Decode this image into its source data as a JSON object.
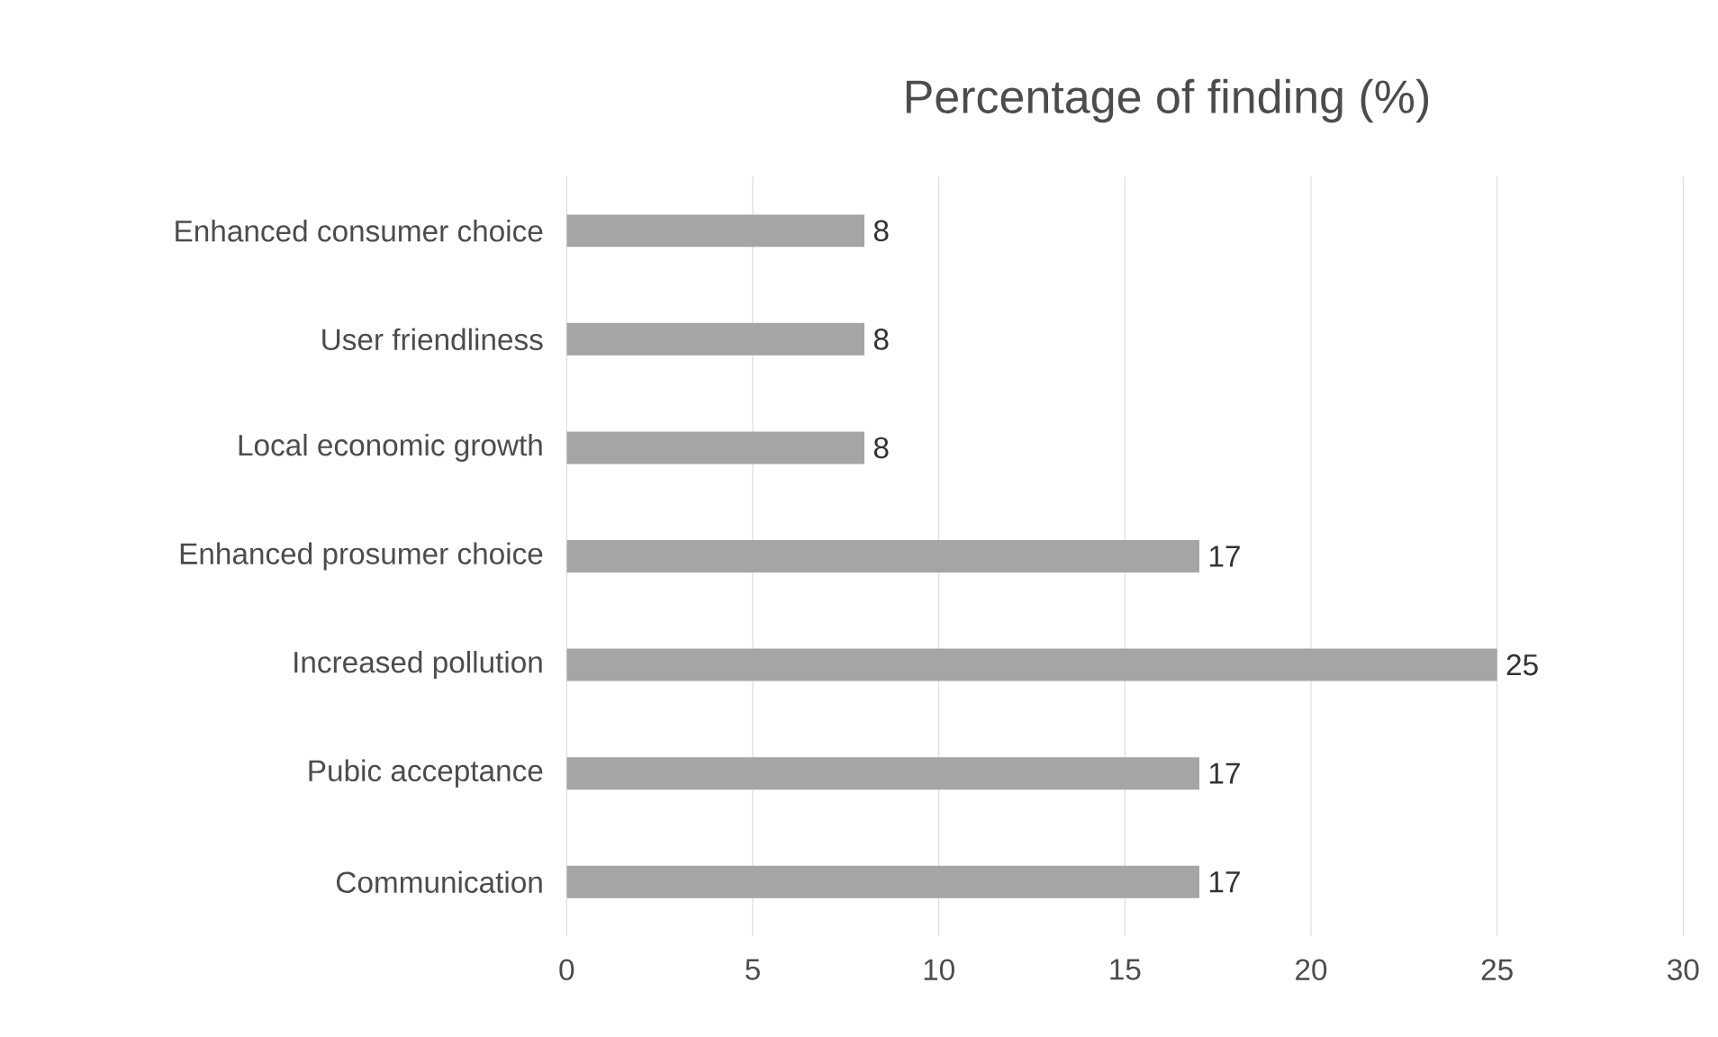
{
  "chart_data": {
    "type": "bar",
    "orientation": "horizontal",
    "title": "Percentage of finding (%)",
    "categories": [
      "Enhanced consumer choice",
      "User friendliness",
      "Local economic growth",
      "Enhanced prosumer choice",
      "Increased pollution",
      "Pubic acceptance",
      "Communication"
    ],
    "values": [
      8,
      8,
      8,
      17,
      25,
      17,
      17
    ],
    "color": "#a5a5a5",
    "xlim": [
      0,
      30
    ],
    "xticks": [
      0,
      5,
      10,
      15,
      20,
      25,
      30
    ],
    "grid": "x",
    "data_labels": true
  }
}
